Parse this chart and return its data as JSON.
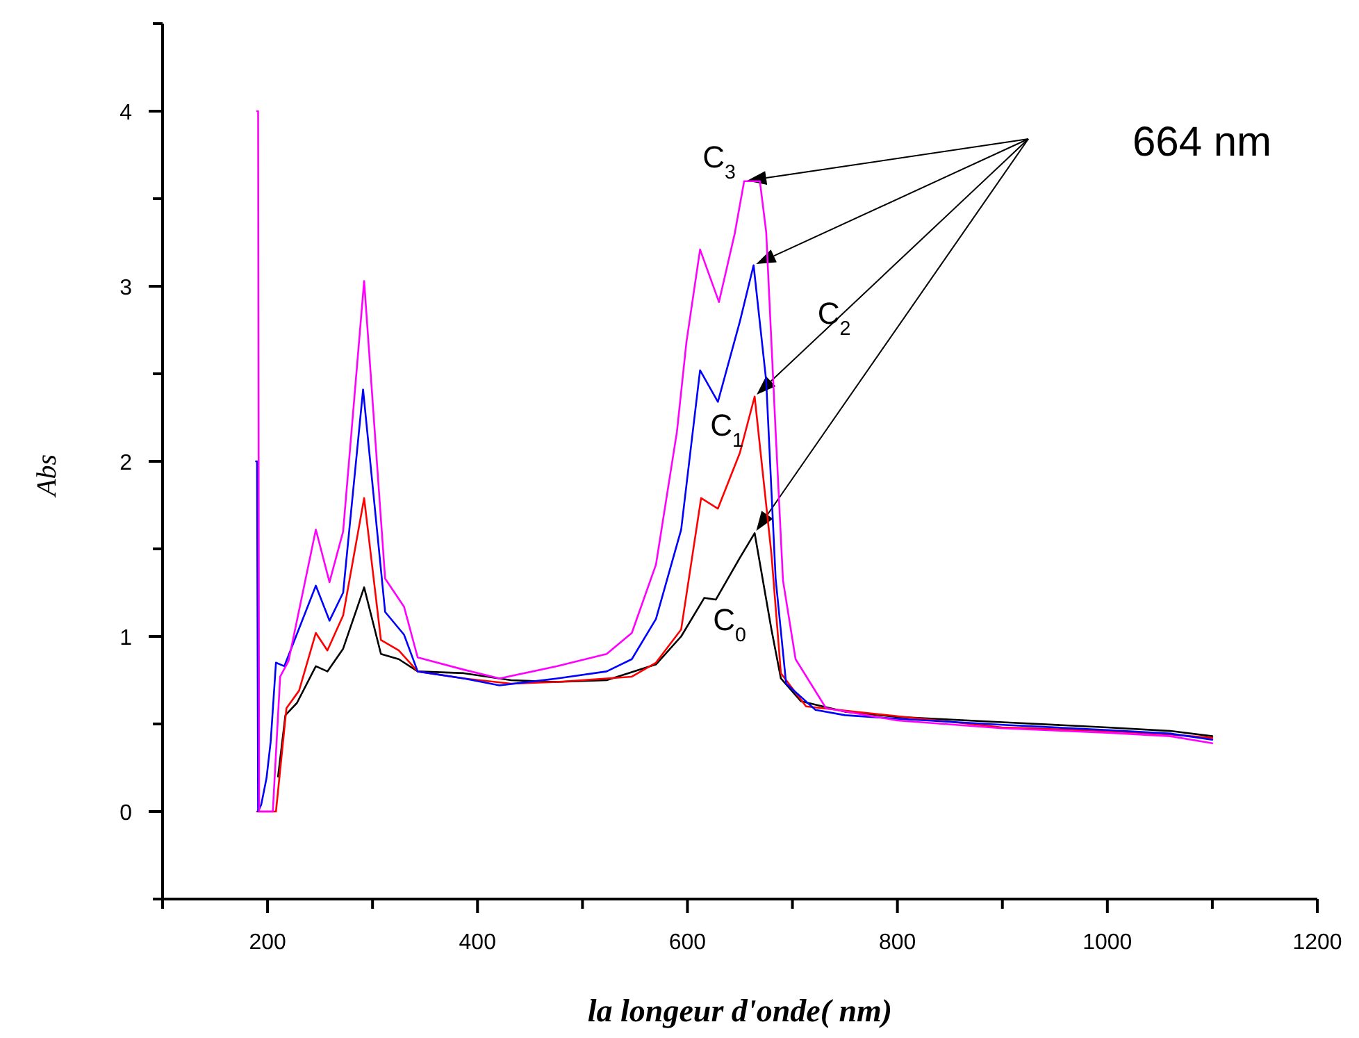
{
  "chart_data": {
    "type": "line",
    "xlabel": "la longeur d'onde( nm)",
    "ylabel": "Abs",
    "xlim": [
      100,
      1200
    ],
    "ylim": [
      -0.5,
      4.5
    ],
    "xticks": [
      {
        "value": 100,
        "label": null
      },
      200,
      {
        "value": 300,
        "label": null
      },
      400,
      {
        "value": 500,
        "label": null
      },
      600,
      {
        "value": 700,
        "label": null
      },
      800,
      {
        "value": 900,
        "label": null
      },
      1000,
      {
        "value": 1100,
        "label": null
      },
      1200
    ],
    "yticks": [
      {
        "value": -0.5,
        "label": null
      },
      0,
      {
        "value": 0.5,
        "label": null
      },
      1,
      {
        "value": 1.5,
        "label": null
      },
      2,
      {
        "value": 2.5,
        "label": null
      },
      3,
      {
        "value": 3.5,
        "label": null
      },
      4,
      {
        "value": 4.5,
        "label": null
      }
    ],
    "grid": false,
    "legend": false,
    "line_style": "solid",
    "marker": "none",
    "series": [
      {
        "color": "#000000",
        "x": [
          210,
          217,
          228,
          246,
          257,
          272,
          292,
          308,
          325,
          343,
          387,
          432,
          476,
          523,
          570,
          594,
          616,
          627,
          650,
          664,
          680,
          689,
          708,
          750,
          800,
          900,
          1000,
          1060,
          1100
        ],
        "values": [
          0.2,
          0.55,
          0.62,
          0.83,
          0.8,
          0.93,
          1.28,
          0.9,
          0.87,
          0.8,
          0.79,
          0.75,
          0.74,
          0.75,
          0.84,
          1.0,
          1.22,
          1.21,
          1.45,
          1.59,
          1.04,
          0.76,
          0.63,
          0.57,
          0.54,
          0.51,
          0.48,
          0.46,
          0.43
        ]
      },
      {
        "color": "#ff0000",
        "x": [
          190,
          193,
          208,
          218,
          230,
          246,
          257,
          272,
          292,
          308,
          325,
          343,
          387,
          432,
          476,
          547,
          570,
          594,
          613,
          629,
          650,
          664,
          680,
          689,
          713,
          900,
          1000,
          1060,
          1100
        ],
        "values": [
          0,
          0,
          0,
          0.59,
          0.69,
          1.02,
          0.92,
          1.12,
          1.79,
          0.98,
          0.92,
          0.8,
          0.76,
          0.73,
          0.74,
          0.77,
          0.85,
          1.04,
          1.79,
          1.73,
          2.05,
          2.37,
          1.47,
          0.79,
          0.6,
          0.48,
          0.46,
          0.44,
          0.42
        ]
      },
      {
        "color": "#0000ff",
        "x": [
          189,
          190,
          191,
          194,
          199,
          203,
          208,
          216,
          246,
          259,
          272,
          291,
          312,
          330,
          343,
          387,
          421,
          476,
          523,
          547,
          570,
          594,
          612,
          629,
          650,
          663,
          675,
          684,
          694,
          722,
          750,
          800,
          900,
          1000,
          1060,
          1100
        ],
        "values": [
          2.0,
          2.0,
          0,
          0.04,
          0.19,
          0.4,
          0.85,
          0.83,
          1.29,
          1.09,
          1.25,
          2.41,
          1.14,
          1.01,
          0.8,
          0.76,
          0.72,
          0.76,
          0.8,
          0.87,
          1.1,
          1.61,
          2.52,
          2.34,
          2.8,
          3.12,
          2.46,
          1.33,
          0.73,
          0.58,
          0.55,
          0.53,
          0.495,
          0.465,
          0.445,
          0.41
        ]
      },
      {
        "color": "#ff00ff",
        "x": [
          190,
          191,
          192,
          205,
          212,
          220,
          246,
          259,
          272,
          292,
          312,
          330,
          343,
          387,
          421,
          476,
          523,
          547,
          570,
          590,
          599,
          612,
          630,
          645,
          654,
          669,
          675,
          684,
          691,
          703,
          732,
          800,
          900,
          1000,
          1060,
          1100
        ],
        "values": [
          4.0,
          4.0,
          0,
          0,
          0.77,
          0.86,
          1.61,
          1.31,
          1.6,
          3.03,
          1.33,
          1.17,
          0.88,
          0.81,
          0.76,
          0.83,
          0.9,
          1.02,
          1.41,
          2.17,
          2.68,
          3.21,
          2.91,
          3.3,
          3.6,
          3.6,
          3.31,
          2.17,
          1.32,
          0.87,
          0.59,
          0.52,
          0.475,
          0.45,
          0.43,
          0.39
        ]
      }
    ],
    "annotations": [
      "664 nm",
      "C$_{3}$",
      "C$_{2}$",
      "C$_{1}$",
      "C$_{0}$"
    ]
  }
}
